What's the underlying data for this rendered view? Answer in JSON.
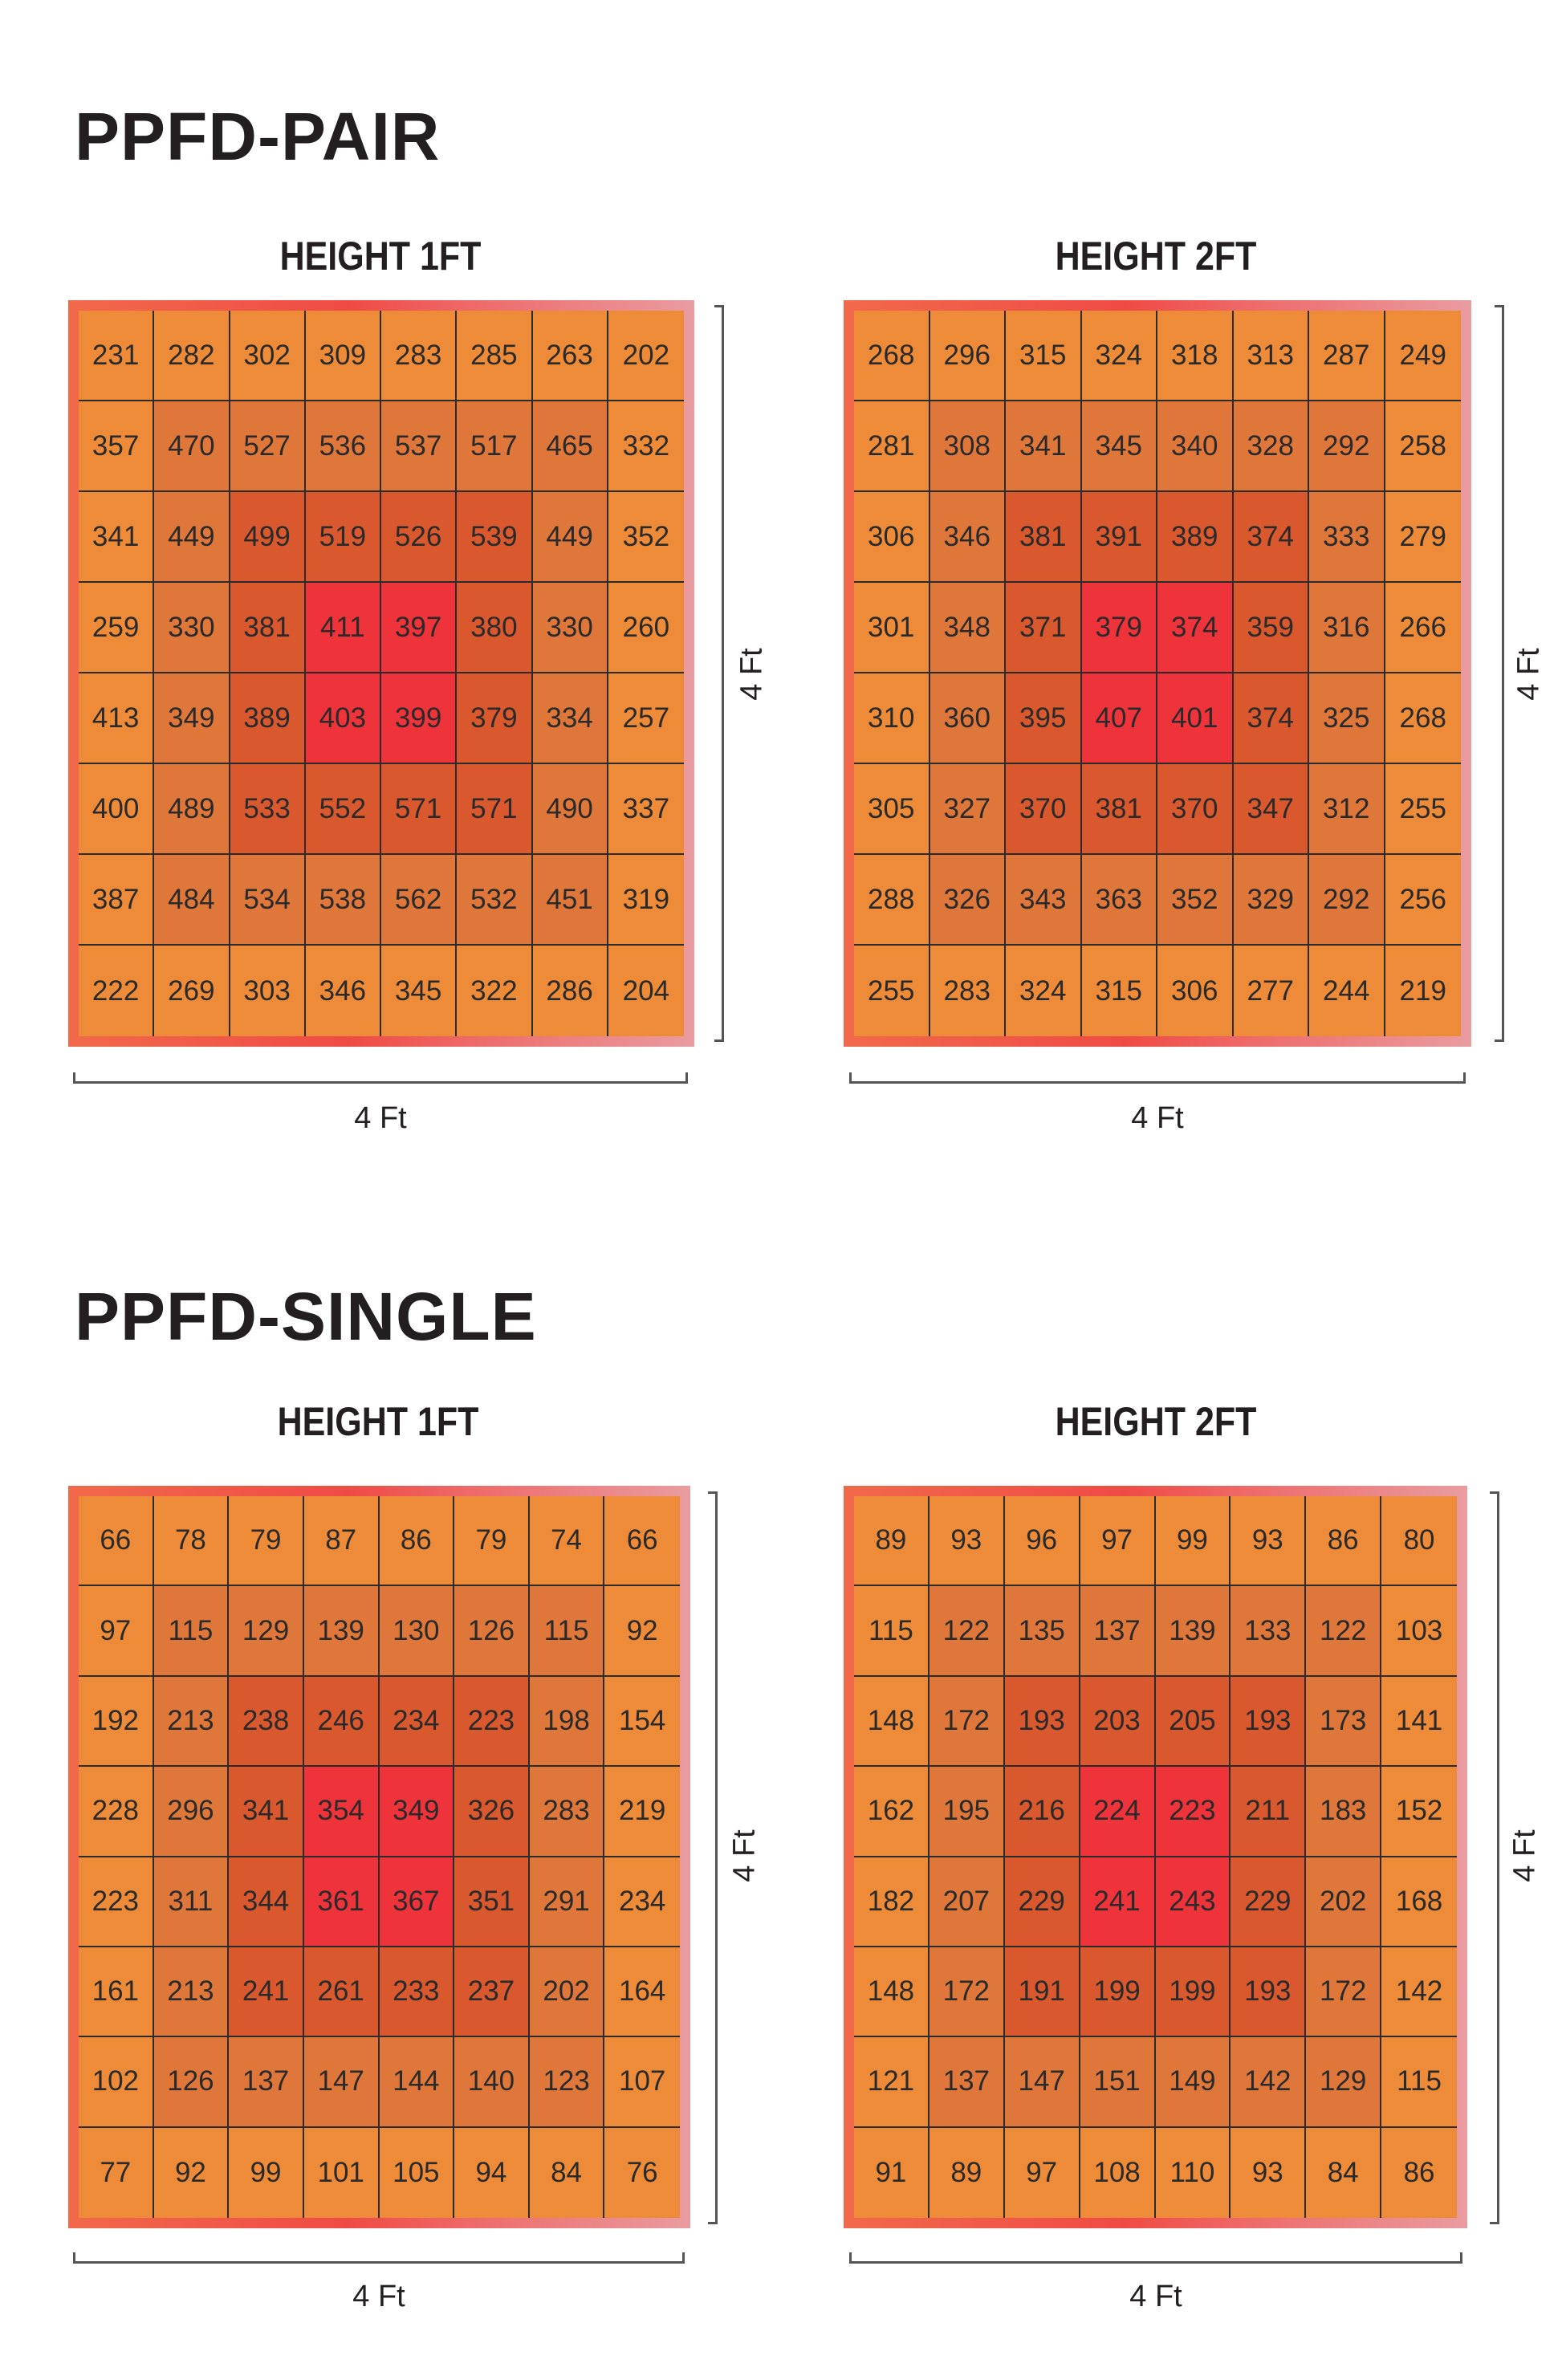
{
  "zone_colors": {
    "outer": "#ee8b38",
    "ring": "#e0773a",
    "inner": "#d9582e",
    "center": "#ee333b"
  },
  "chart_data": [
    {
      "type": "heatmap",
      "section": "PPFD-PAIR",
      "title": "HEIGHT 1FT",
      "xlabel": "4 Ft",
      "ylabel": "4 Ft",
      "values": [
        [
          231,
          282,
          302,
          309,
          283,
          285,
          263,
          202
        ],
        [
          357,
          470,
          527,
          536,
          537,
          517,
          465,
          332
        ],
        [
          341,
          449,
          499,
          519,
          526,
          539,
          449,
          352
        ],
        [
          259,
          330,
          381,
          411,
          397,
          380,
          330,
          260
        ],
        [
          413,
          349,
          389,
          403,
          399,
          379,
          334,
          257
        ],
        [
          400,
          489,
          533,
          552,
          571,
          571,
          490,
          337
        ],
        [
          387,
          484,
          534,
          538,
          562,
          532,
          451,
          319
        ],
        [
          222,
          269,
          303,
          346,
          345,
          322,
          286,
          204
        ]
      ]
    },
    {
      "type": "heatmap",
      "section": "PPFD-PAIR",
      "title": "HEIGHT 2FT",
      "xlabel": "4 Ft",
      "ylabel": "4 Ft",
      "values": [
        [
          268,
          296,
          315,
          324,
          318,
          313,
          287,
          249
        ],
        [
          281,
          308,
          341,
          345,
          340,
          328,
          292,
          258
        ],
        [
          306,
          346,
          381,
          391,
          389,
          374,
          333,
          279
        ],
        [
          301,
          348,
          371,
          379,
          374,
          359,
          316,
          266
        ],
        [
          310,
          360,
          395,
          407,
          401,
          374,
          325,
          268
        ],
        [
          305,
          327,
          370,
          381,
          370,
          347,
          312,
          255
        ],
        [
          288,
          326,
          343,
          363,
          352,
          329,
          292,
          256
        ],
        [
          255,
          283,
          324,
          315,
          306,
          277,
          244,
          219
        ]
      ]
    },
    {
      "type": "heatmap",
      "section": "PPFD-SINGLE",
      "title": "HEIGHT 1FT",
      "xlabel": "4 Ft",
      "ylabel": "4 Ft",
      "values": [
        [
          66,
          78,
          79,
          87,
          86,
          79,
          74,
          66
        ],
        [
          97,
          115,
          129,
          139,
          130,
          126,
          115,
          92
        ],
        [
          192,
          213,
          238,
          246,
          234,
          223,
          198,
          154
        ],
        [
          228,
          296,
          341,
          354,
          349,
          326,
          283,
          219
        ],
        [
          223,
          311,
          344,
          361,
          367,
          351,
          291,
          234
        ],
        [
          161,
          213,
          241,
          261,
          233,
          237,
          202,
          164
        ],
        [
          102,
          126,
          137,
          147,
          144,
          140,
          123,
          107
        ],
        [
          77,
          92,
          99,
          101,
          105,
          94,
          84,
          76
        ]
      ]
    },
    {
      "type": "heatmap",
      "section": "PPFD-SINGLE",
      "title": "HEIGHT 2FT",
      "xlabel": "4 Ft",
      "ylabel": "4 Ft",
      "values": [
        [
          89,
          93,
          96,
          97,
          99,
          93,
          86,
          80
        ],
        [
          115,
          122,
          135,
          137,
          139,
          133,
          122,
          103
        ],
        [
          148,
          172,
          193,
          203,
          205,
          193,
          173,
          141
        ],
        [
          162,
          195,
          216,
          224,
          223,
          211,
          183,
          152
        ],
        [
          182,
          207,
          229,
          241,
          243,
          229,
          202,
          168
        ],
        [
          148,
          172,
          191,
          199,
          199,
          193,
          172,
          142
        ],
        [
          121,
          137,
          147,
          151,
          149,
          142,
          129,
          115
        ],
        [
          91,
          89,
          97,
          108,
          110,
          93,
          84,
          86
        ]
      ]
    }
  ]
}
